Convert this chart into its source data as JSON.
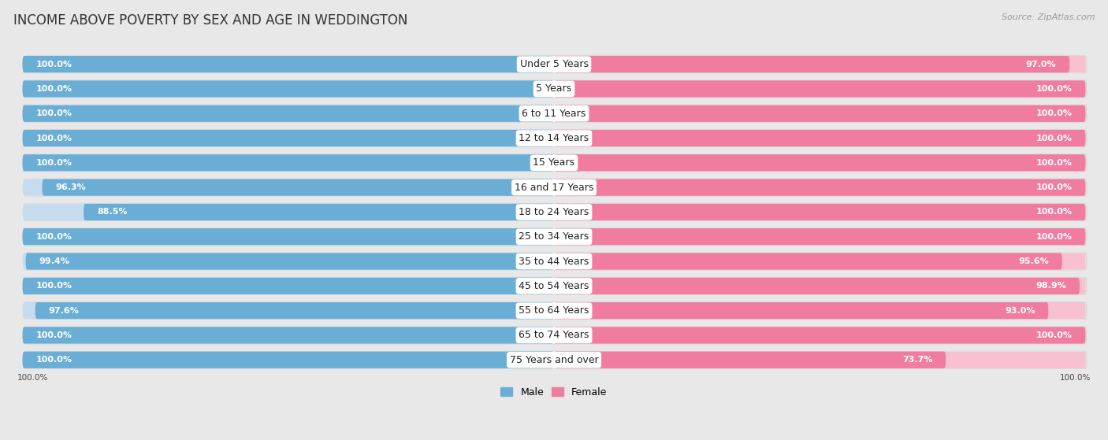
{
  "title": "INCOME ABOVE POVERTY BY SEX AND AGE IN WEDDINGTON",
  "source": "Source: ZipAtlas.com",
  "categories": [
    "Under 5 Years",
    "5 Years",
    "6 to 11 Years",
    "12 to 14 Years",
    "15 Years",
    "16 and 17 Years",
    "18 to 24 Years",
    "25 to 34 Years",
    "35 to 44 Years",
    "45 to 54 Years",
    "55 to 64 Years",
    "65 to 74 Years",
    "75 Years and over"
  ],
  "male_values": [
    100.0,
    100.0,
    100.0,
    100.0,
    100.0,
    96.3,
    88.5,
    100.0,
    99.4,
    100.0,
    97.6,
    100.0,
    100.0
  ],
  "female_values": [
    97.0,
    100.0,
    100.0,
    100.0,
    100.0,
    100.0,
    100.0,
    100.0,
    95.6,
    98.9,
    93.0,
    100.0,
    73.7
  ],
  "male_color": "#6aaed6",
  "female_color": "#f07ca0",
  "male_color_light": "#c6dcee",
  "female_color_light": "#f9c0d0",
  "bar_height": 0.68,
  "background_color": "#e8e8e8",
  "row_bg_color": "#f0f0f0",
  "label_color": "#ffffff",
  "title_fontsize": 12,
  "label_fontsize": 8,
  "category_fontsize": 9,
  "legend_male": "Male",
  "legend_female": "Female",
  "shadow_color": "#cccccc"
}
